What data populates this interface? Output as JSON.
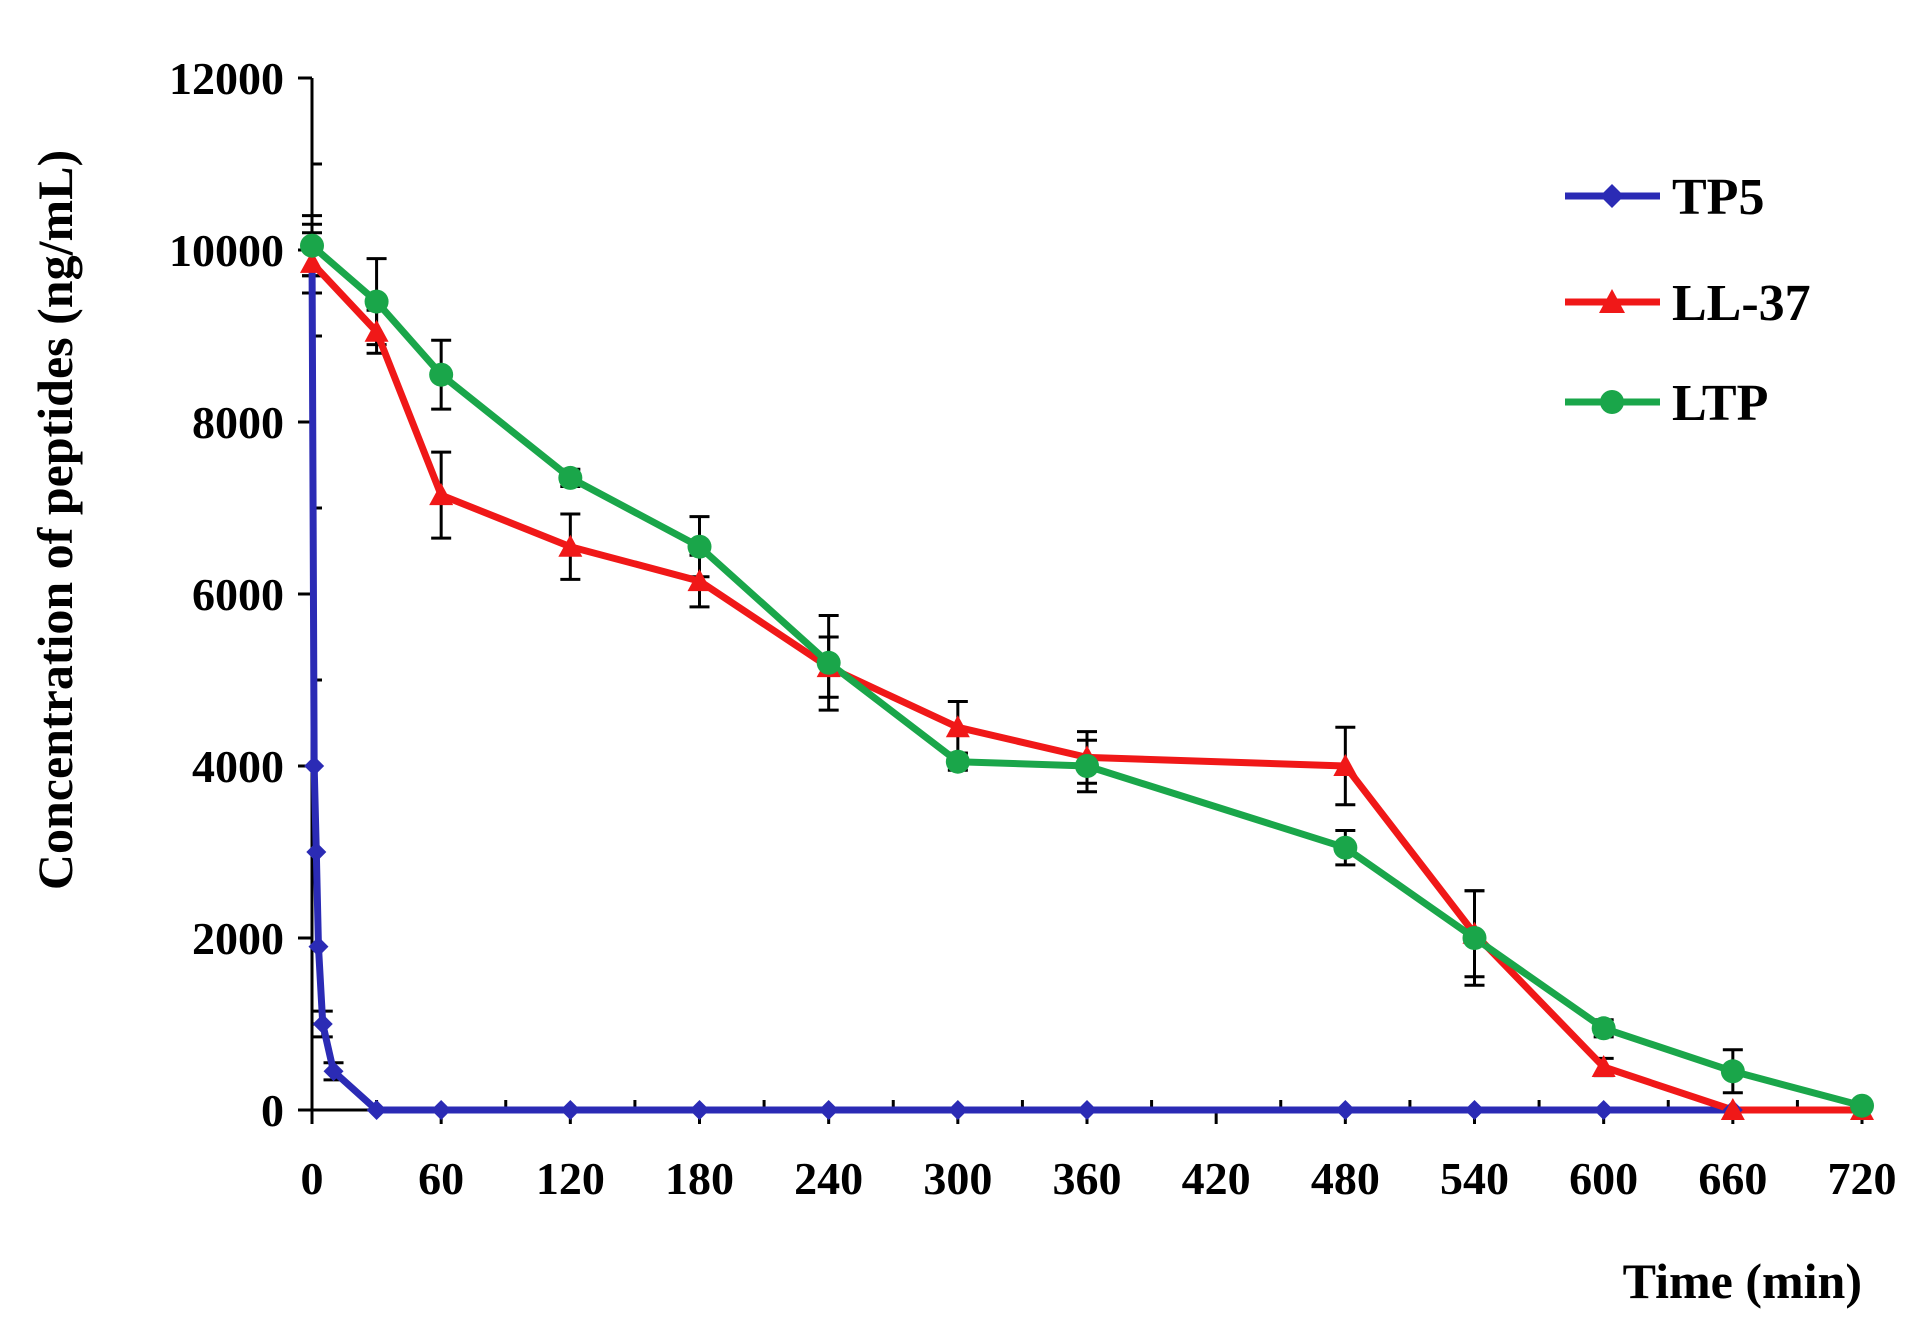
{
  "chart_data": {
    "type": "line",
    "title": "",
    "xlabel": "Time (min)",
    "ylabel": "Concentration of peptides (ng/mL)",
    "xlim": [
      0,
      720
    ],
    "ylim": [
      0,
      12000
    ],
    "x_ticks": [
      0,
      60,
      120,
      180,
      240,
      300,
      360,
      420,
      480,
      540,
      600,
      660,
      720
    ],
    "y_ticks": [
      0,
      2000,
      4000,
      6000,
      8000,
      10000,
      12000
    ],
    "grid": false,
    "legend_position": "top-right",
    "series": [
      {
        "name": "TP5",
        "color": "#2b2bb5",
        "marker": "diamond",
        "x": [
          0,
          1,
          2,
          3,
          5,
          10,
          30,
          60,
          120,
          180,
          240,
          300,
          360,
          480,
          540,
          600,
          660,
          720
        ],
        "y": [
          10000,
          4000,
          3000,
          1900,
          1000,
          450,
          0,
          0,
          0,
          0,
          0,
          0,
          0,
          0,
          0,
          0,
          0,
          0
        ],
        "error": [
          300,
          0,
          0,
          0,
          150,
          100,
          0,
          0,
          0,
          0,
          0,
          0,
          0,
          0,
          0,
          0,
          0,
          0
        ]
      },
      {
        "name": "LL-37",
        "color": "#f01818",
        "marker": "triangle",
        "x": [
          0,
          30,
          60,
          120,
          180,
          240,
          300,
          360,
          480,
          540,
          600,
          660,
          720
        ],
        "y": [
          9850,
          9050,
          7150,
          6550,
          6150,
          5150,
          4450,
          4100,
          4000,
          2050,
          500,
          0,
          0
        ],
        "error": [
          350,
          250,
          500,
          380,
          300,
          350,
          300,
          300,
          450,
          500,
          100,
          0,
          0
        ]
      },
      {
        "name": "LTP",
        "color": "#1aa64a",
        "marker": "circle",
        "x": [
          0,
          30,
          60,
          120,
          180,
          240,
          300,
          360,
          480,
          540,
          600,
          660,
          720
        ],
        "y": [
          10050,
          9400,
          8550,
          7350,
          6550,
          5200,
          4050,
          4000,
          3050,
          2000,
          950,
          450,
          50
        ],
        "error": [
          350,
          500,
          400,
          100,
          350,
          550,
          100,
          300,
          200,
          550,
          100,
          250,
          0
        ]
      }
    ]
  }
}
